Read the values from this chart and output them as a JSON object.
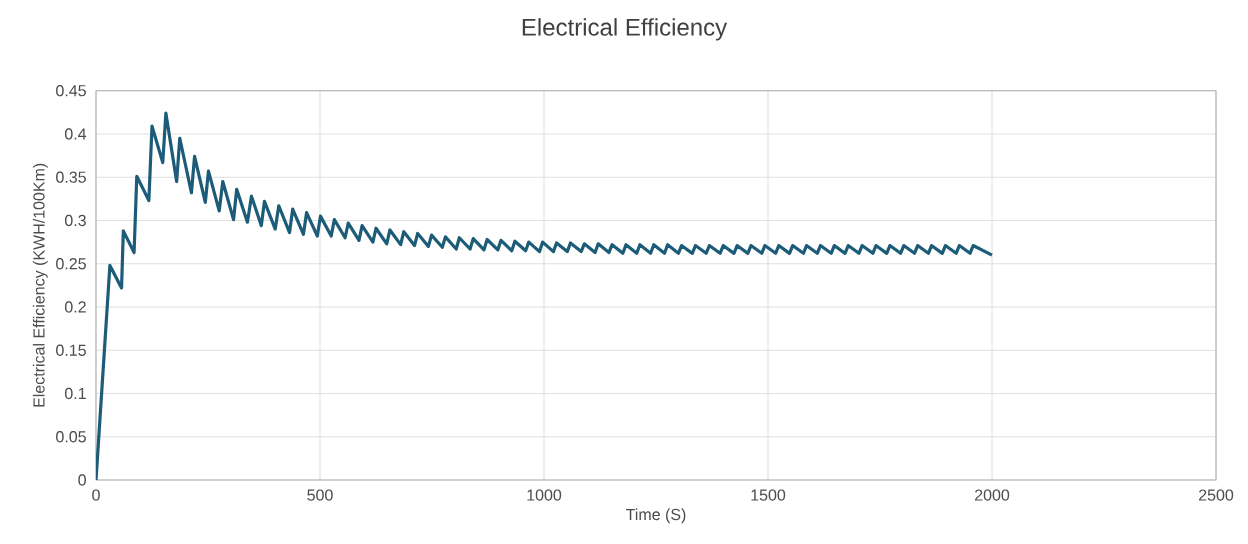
{
  "chart_data": {
    "type": "line",
    "title": "Electrical Efficiency",
    "xlabel": "Time (S)",
    "ylabel": "Electrical Efficiency (KWH/100Km)",
    "x": [
      0,
      31,
      57,
      61,
      85,
      91,
      118,
      125,
      149,
      156,
      180,
      187,
      213,
      220,
      244,
      251,
      275,
      283,
      307,
      314,
      338,
      347,
      369,
      376,
      400,
      408,
      432,
      439,
      463,
      470,
      494,
      501,
      525,
      532,
      556,
      563,
      587,
      594,
      618,
      625,
      649,
      656,
      680,
      687,
      711,
      718,
      742,
      749,
      773,
      780,
      804,
      811,
      835,
      842,
      866,
      873,
      897,
      904,
      928,
      935,
      959,
      966,
      990,
      997,
      1021,
      1028,
      1052,
      1059,
      1083,
      1090,
      1114,
      1121,
      1145,
      1152,
      1176,
      1183,
      1207,
      1214,
      1238,
      1245,
      1269,
      1276,
      1300,
      1307,
      1331,
      1338,
      1362,
      1369,
      1393,
      1400,
      1424,
      1431,
      1455,
      1462,
      1486,
      1493,
      1517,
      1524,
      1548,
      1555,
      1579,
      1586,
      1610,
      1617,
      1641,
      1648,
      1672,
      1679,
      1703,
      1710,
      1734,
      1741,
      1765,
      1772,
      1796,
      1803,
      1827,
      1834,
      1858,
      1865,
      1889,
      1896,
      1920,
      1927,
      1951,
      1958,
      2000
    ],
    "series": [
      {
        "color": "#1d5c78",
        "values": [
          0,
          0.248,
          0.222,
          0.288,
          0.263,
          0.351,
          0.323,
          0.409,
          0.367,
          0.424,
          0.345,
          0.395,
          0.332,
          0.374,
          0.321,
          0.357,
          0.311,
          0.345,
          0.301,
          0.336,
          0.298,
          0.328,
          0.294,
          0.322,
          0.29,
          0.317,
          0.286,
          0.313,
          0.284,
          0.309,
          0.282,
          0.305,
          0.282,
          0.301,
          0.28,
          0.297,
          0.277,
          0.294,
          0.275,
          0.291,
          0.273,
          0.289,
          0.272,
          0.287,
          0.271,
          0.285,
          0.27,
          0.283,
          0.269,
          0.281,
          0.267,
          0.28,
          0.267,
          0.279,
          0.266,
          0.278,
          0.266,
          0.277,
          0.265,
          0.276,
          0.265,
          0.275,
          0.264,
          0.275,
          0.264,
          0.274,
          0.264,
          0.274,
          0.264,
          0.273,
          0.263,
          0.273,
          0.263,
          0.272,
          0.262,
          0.272,
          0.262,
          0.272,
          0.262,
          0.272,
          0.262,
          0.272,
          0.262,
          0.271,
          0.262,
          0.271,
          0.262,
          0.271,
          0.262,
          0.271,
          0.262,
          0.271,
          0.262,
          0.271,
          0.262,
          0.271,
          0.262,
          0.271,
          0.262,
          0.271,
          0.262,
          0.271,
          0.262,
          0.271,
          0.262,
          0.271,
          0.262,
          0.271,
          0.262,
          0.271,
          0.262,
          0.271,
          0.262,
          0.271,
          0.262,
          0.271,
          0.262,
          0.271,
          0.262,
          0.271,
          0.262,
          0.271,
          0.262,
          0.271,
          0.262,
          0.271,
          0.26
        ]
      }
    ],
    "xlim": [
      0,
      2500
    ],
    "xticks": [
      0,
      500,
      1000,
      1500,
      2000,
      2500
    ],
    "ylim": [
      0,
      0.45
    ],
    "yticks": [
      0,
      0.05,
      0.1,
      0.15,
      0.2,
      0.25,
      0.3,
      0.35,
      0.4,
      0.45
    ],
    "grid": true,
    "legend": false,
    "marker": "none",
    "line_style": "solid"
  }
}
